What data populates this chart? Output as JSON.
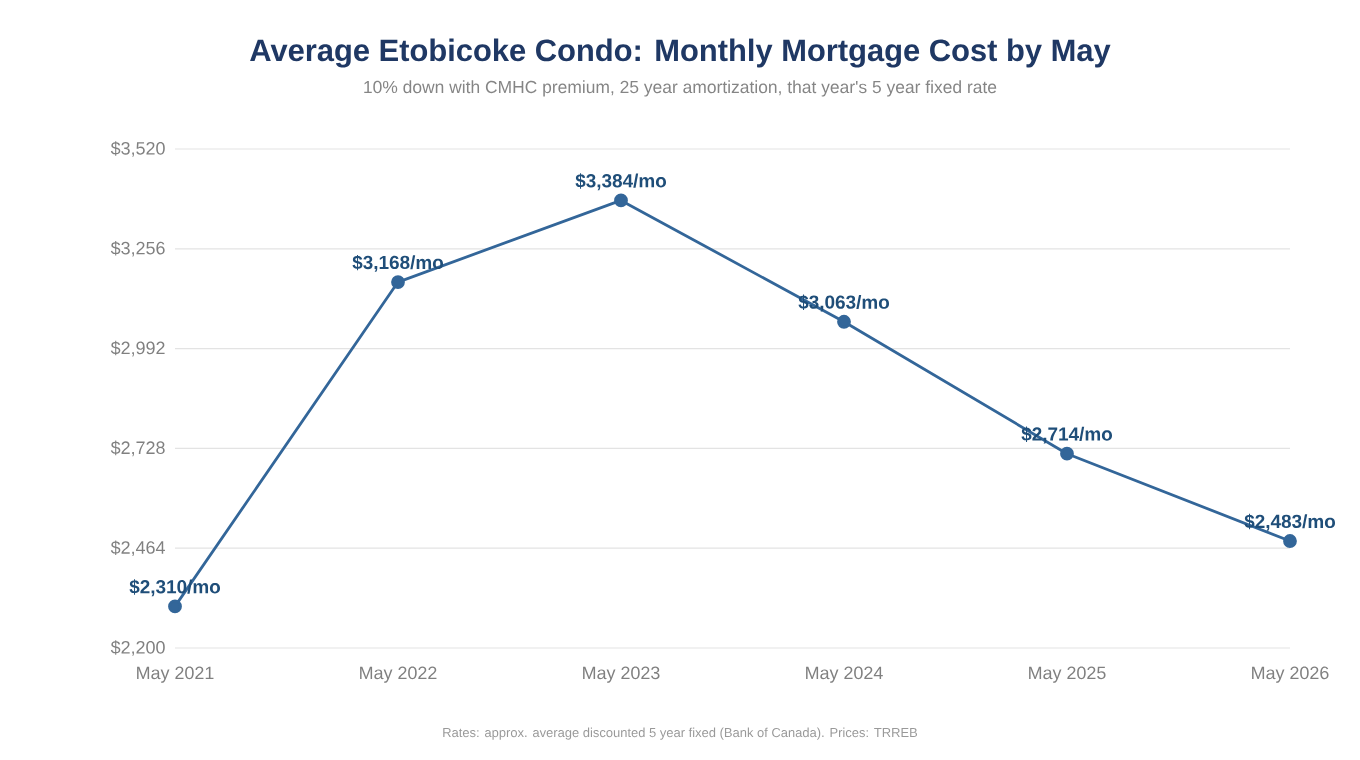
{
  "chart_data": {
    "type": "line",
    "title": "Average Etobicoke Condo: Monthly Mortgage Cost by May",
    "subtitle": "10% down with CMHC premium, 25 year amortization, that year's 5 year fixed rate",
    "categories": [
      "May 2021",
      "May 2022",
      "May 2023",
      "May 2024",
      "May 2025",
      "May 2026"
    ],
    "values": [
      2310,
      3168,
      3384,
      3063,
      2714,
      2483
    ],
    "value_labels": [
      "$2,310/mo",
      "$3,168/mo",
      "$3,384/mo",
      "$3,063/mo",
      "$2,714/mo",
      "$2,483/mo"
    ],
    "color": "#336699",
    "ylim": [
      2200,
      3520
    ],
    "yticks": [
      {
        "value": 2200,
        "label": "$2,200"
      },
      {
        "value": 2464,
        "label": "$2,464"
      },
      {
        "value": 2728,
        "label": "$2,728"
      },
      {
        "value": 2992,
        "label": "$2,992"
      },
      {
        "value": 3256,
        "label": "$3,256"
      },
      {
        "value": 3520,
        "label": "$3,520"
      }
    ],
    "grid": "y",
    "marker": "circle",
    "line_style": "solid",
    "annotations": [
      "Rates: approx. average discounted 5 year fixed (Bank of Canada). Prices: TRREB"
    ]
  }
}
